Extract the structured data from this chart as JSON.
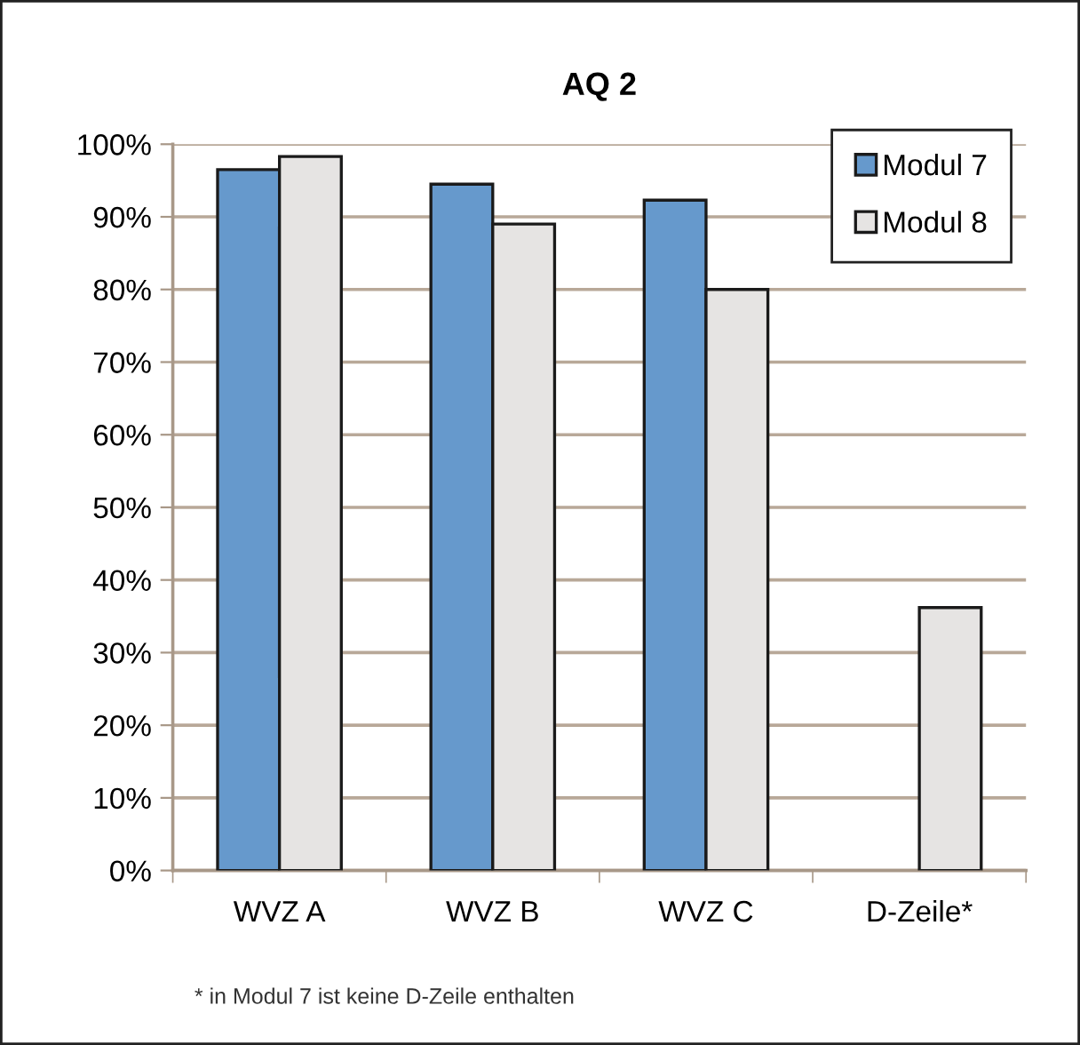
{
  "chart_data": {
    "type": "bar",
    "title": "AQ 2",
    "categories": [
      "WVZ A",
      "WVZ B",
      "WVZ C",
      "D-Zeile*"
    ],
    "series": [
      {
        "name": "Modul 7",
        "color": "#6699cc",
        "values": [
          96.5,
          94.5,
          92.3,
          null
        ]
      },
      {
        "name": "Modul 8",
        "color": "#e6e4e3",
        "values": [
          98.3,
          89,
          80,
          36.2
        ]
      }
    ],
    "ylim": [
      0,
      100
    ],
    "yticks": [
      {
        "value": 0,
        "label": "0%"
      },
      {
        "value": 10,
        "label": "10%"
      },
      {
        "value": 20,
        "label": "20%"
      },
      {
        "value": 30,
        "label": "30%"
      },
      {
        "value": 40,
        "label": "40%"
      },
      {
        "value": 50,
        "label": "50%"
      },
      {
        "value": 60,
        "label": "60%"
      },
      {
        "value": 70,
        "label": "70%"
      },
      {
        "value": 80,
        "label": "80%"
      },
      {
        "value": 90,
        "label": "90%"
      },
      {
        "value": 100,
        "label": "100%"
      }
    ],
    "grid": "y",
    "legend": "top right",
    "annotations": [
      "* in Modul 7 ist keine D-Zeile enthalten"
    ]
  }
}
